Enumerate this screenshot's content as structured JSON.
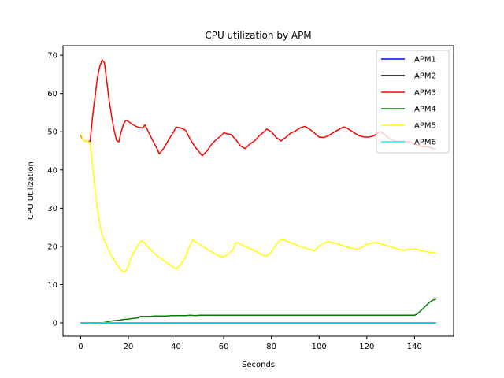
{
  "chart_data": {
    "type": "line",
    "title": "CPU utilization by APM",
    "xlabel": "Seconds",
    "ylabel": "CPU Utilization",
    "xlim": [
      -7.4,
      156.4
    ],
    "ylim": [
      -3.5,
      72.5
    ],
    "xticks": [
      0,
      20,
      40,
      60,
      80,
      100,
      120,
      140
    ],
    "yticks": [
      0,
      10,
      20,
      30,
      40,
      50,
      60,
      70
    ],
    "grid": false,
    "legend_position": "top-right",
    "series": [
      {
        "name": "APM1",
        "color": "#0000ff",
        "points": [
          [
            0,
            0
          ],
          [
            149,
            0
          ]
        ]
      },
      {
        "name": "APM2",
        "color": "#000000",
        "points": [
          [
            0,
            0
          ],
          [
            149,
            0
          ]
        ]
      },
      {
        "name": "APM3",
        "color": "#ff0000",
        "points": [
          [
            0,
            49
          ],
          [
            1,
            48
          ],
          [
            2,
            47.5
          ],
          [
            3,
            47.5
          ],
          [
            4,
            47.5
          ],
          [
            5,
            54
          ],
          [
            6,
            59
          ],
          [
            7,
            64
          ],
          [
            8,
            67
          ],
          [
            9,
            68.8
          ],
          [
            10,
            68
          ],
          [
            11,
            63
          ],
          [
            12,
            58
          ],
          [
            13,
            54
          ],
          [
            14,
            50.5
          ],
          [
            15,
            47.8
          ],
          [
            16,
            47.3
          ],
          [
            17,
            50
          ],
          [
            18,
            52
          ],
          [
            19,
            53
          ],
          [
            20,
            52.7
          ],
          [
            22,
            51.8
          ],
          [
            24,
            51.2
          ],
          [
            26,
            51
          ],
          [
            27,
            51.8
          ],
          [
            28,
            50.5
          ],
          [
            30,
            48
          ],
          [
            32,
            45.6
          ],
          [
            33,
            44.2
          ],
          [
            35,
            45.8
          ],
          [
            37,
            48
          ],
          [
            39,
            50
          ],
          [
            40,
            51.2
          ],
          [
            42,
            51
          ],
          [
            44,
            50.4
          ],
          [
            46,
            48
          ],
          [
            48,
            46
          ],
          [
            50,
            44.5
          ],
          [
            51,
            43.7
          ],
          [
            53,
            45
          ],
          [
            55,
            46.8
          ],
          [
            57,
            48
          ],
          [
            59,
            49
          ],
          [
            60,
            49.7
          ],
          [
            62,
            49.4
          ],
          [
            63,
            49.3
          ],
          [
            65,
            48
          ],
          [
            67,
            46.3
          ],
          [
            69,
            45.6
          ],
          [
            71,
            46.8
          ],
          [
            73,
            47.6
          ],
          [
            75,
            49
          ],
          [
            77,
            50
          ],
          [
            78,
            50.7
          ],
          [
            80,
            50
          ],
          [
            82,
            48.5
          ],
          [
            84,
            47.6
          ],
          [
            86,
            48.5
          ],
          [
            88,
            49.6
          ],
          [
            90,
            50.2
          ],
          [
            92,
            51
          ],
          [
            94,
            51.4
          ],
          [
            96,
            50.7
          ],
          [
            98,
            49.7
          ],
          [
            100,
            48.6
          ],
          [
            102,
            48.5
          ],
          [
            104,
            49
          ],
          [
            106,
            49.8
          ],
          [
            108,
            50.5
          ],
          [
            110,
            51.2
          ],
          [
            111,
            51.2
          ],
          [
            113,
            50.4
          ],
          [
            115,
            49.6
          ],
          [
            117,
            48.9
          ],
          [
            119,
            48.6
          ],
          [
            121,
            48.6
          ],
          [
            123,
            49
          ],
          [
            125,
            49.8
          ],
          [
            126,
            50
          ],
          [
            128,
            49
          ],
          [
            130,
            48
          ],
          [
            132,
            47.5
          ],
          [
            134,
            47.5
          ],
          [
            136,
            47.5
          ],
          [
            138,
            47.3
          ],
          [
            140,
            46.8
          ],
          [
            142,
            46.3
          ],
          [
            144,
            46
          ],
          [
            146,
            46
          ],
          [
            148,
            45.6
          ],
          [
            149,
            45.5
          ]
        ]
      },
      {
        "name": "APM4",
        "color": "#008000",
        "points": [
          [
            0,
            0
          ],
          [
            2,
            0
          ],
          [
            4,
            0
          ],
          [
            6,
            -0.1
          ],
          [
            8,
            0
          ],
          [
            10,
            0.1
          ],
          [
            12,
            0.4
          ],
          [
            14,
            0.6
          ],
          [
            16,
            0.7
          ],
          [
            18,
            0.9
          ],
          [
            20,
            1
          ],
          [
            22,
            1.2
          ],
          [
            24,
            1.3
          ],
          [
            25,
            1.7
          ],
          [
            27,
            1.7
          ],
          [
            29,
            1.7
          ],
          [
            31,
            1.8
          ],
          [
            33,
            1.8
          ],
          [
            36,
            1.8
          ],
          [
            38,
            1.9
          ],
          [
            40,
            1.9
          ],
          [
            42,
            1.9
          ],
          [
            44,
            1.9
          ],
          [
            46,
            2
          ],
          [
            48,
            1.9
          ],
          [
            50,
            2
          ],
          [
            55,
            2
          ],
          [
            60,
            2
          ],
          [
            70,
            2
          ],
          [
            80,
            2
          ],
          [
            90,
            2
          ],
          [
            100,
            2
          ],
          [
            110,
            2
          ],
          [
            120,
            2
          ],
          [
            130,
            2
          ],
          [
            138,
            2
          ],
          [
            140,
            2
          ],
          [
            141,
            2.3
          ],
          [
            142,
            2.8
          ],
          [
            143,
            3.4
          ],
          [
            144,
            4
          ],
          [
            145,
            4.6
          ],
          [
            146,
            5.2
          ],
          [
            147,
            5.7
          ],
          [
            148,
            6
          ],
          [
            149,
            6.2
          ]
        ]
      },
      {
        "name": "APM5",
        "color": "#ffff00",
        "points": [
          [
            0,
            49.5
          ],
          [
            1,
            48
          ],
          [
            2,
            47.5
          ],
          [
            3,
            47.5
          ],
          [
            4,
            47
          ],
          [
            5,
            41
          ],
          [
            6,
            35
          ],
          [
            7,
            30
          ],
          [
            8,
            26
          ],
          [
            9,
            23
          ],
          [
            10,
            21.5
          ],
          [
            11,
            20
          ],
          [
            12,
            18.8
          ],
          [
            13,
            17.5
          ],
          [
            14,
            16.5
          ],
          [
            15,
            15.5
          ],
          [
            16,
            14.6
          ],
          [
            17,
            13.8
          ],
          [
            18,
            13.2
          ],
          [
            19,
            13.6
          ],
          [
            20,
            15
          ],
          [
            21,
            16.8
          ],
          [
            22,
            18
          ],
          [
            23,
            19.2
          ],
          [
            24,
            20.2
          ],
          [
            25,
            21.3
          ],
          [
            26,
            21.4
          ],
          [
            27,
            20.8
          ],
          [
            28,
            20
          ],
          [
            30,
            18.8
          ],
          [
            32,
            17.6
          ],
          [
            34,
            16.7
          ],
          [
            36,
            15.8
          ],
          [
            38,
            15
          ],
          [
            40,
            14.1
          ],
          [
            42,
            15.3
          ],
          [
            44,
            17.2
          ],
          [
            45,
            19
          ],
          [
            46,
            20.5
          ],
          [
            47,
            21.7
          ],
          [
            48,
            21.3
          ],
          [
            50,
            20.5
          ],
          [
            52,
            19.7
          ],
          [
            54,
            18.9
          ],
          [
            56,
            18.2
          ],
          [
            58,
            17.5
          ],
          [
            60,
            17.3
          ],
          [
            62,
            18
          ],
          [
            64,
            19.3
          ],
          [
            65,
            21
          ],
          [
            66,
            21
          ],
          [
            68,
            20.3
          ],
          [
            70,
            19.7
          ],
          [
            72,
            19.2
          ],
          [
            74,
            18.6
          ],
          [
            76,
            17.8
          ],
          [
            78,
            17.5
          ],
          [
            80,
            18.5
          ],
          [
            82,
            20.5
          ],
          [
            84,
            21.8
          ],
          [
            86,
            21.5
          ],
          [
            88,
            21
          ],
          [
            90,
            20.5
          ],
          [
            92,
            20
          ],
          [
            94,
            19.6
          ],
          [
            96,
            19.2
          ],
          [
            98,
            18.9
          ],
          [
            100,
            20
          ],
          [
            102,
            20.9
          ],
          [
            104,
            21.2
          ],
          [
            106,
            21
          ],
          [
            108,
            20.6
          ],
          [
            110,
            20.2
          ],
          [
            112,
            19.8
          ],
          [
            114,
            19.5
          ],
          [
            116,
            19.2
          ],
          [
            118,
            19.8
          ],
          [
            120,
            20.5
          ],
          [
            122,
            20.9
          ],
          [
            124,
            21
          ],
          [
            126,
            20.7
          ],
          [
            128,
            20.3
          ],
          [
            130,
            19.9
          ],
          [
            132,
            19.5
          ],
          [
            134,
            19.1
          ],
          [
            136,
            19
          ],
          [
            138,
            19.2
          ],
          [
            140,
            19.4
          ],
          [
            142,
            19
          ],
          [
            144,
            18.8
          ],
          [
            146,
            18.5
          ],
          [
            148,
            18.3
          ],
          [
            149,
            18.2
          ]
        ]
      },
      {
        "name": "APM6",
        "color": "#00ffff",
        "points": [
          [
            0,
            0
          ],
          [
            149,
            0
          ]
        ]
      }
    ]
  }
}
